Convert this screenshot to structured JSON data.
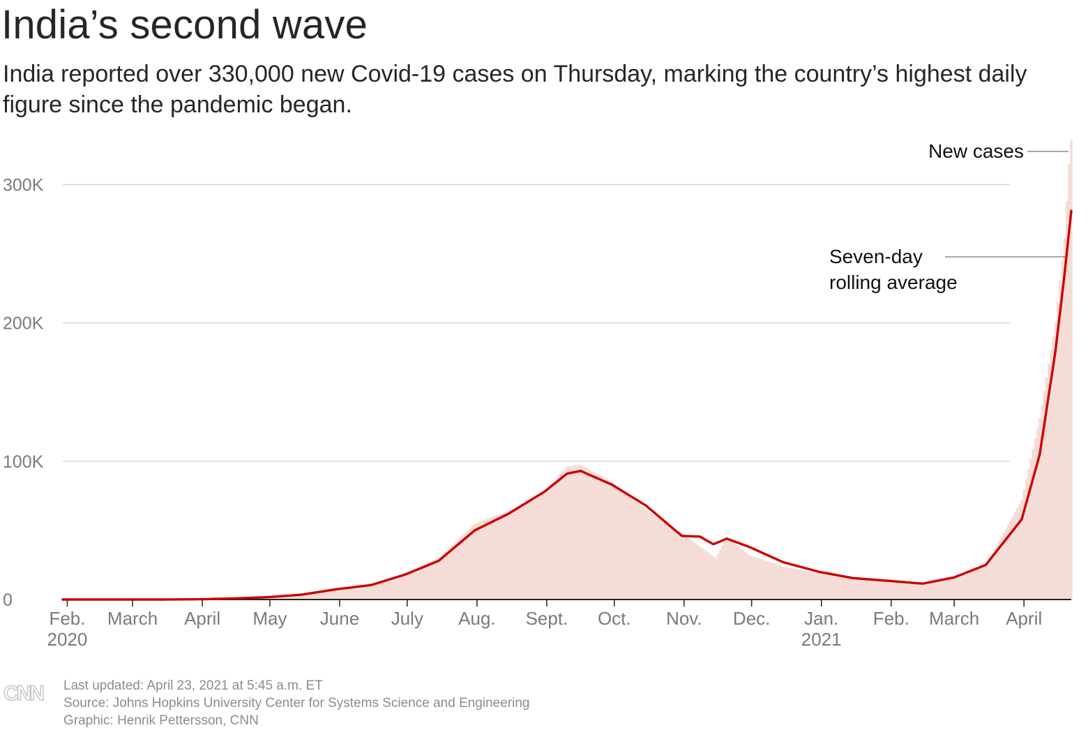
{
  "header": {
    "title": "India’s second wave",
    "subtitle": "India reported over 330,000 new Covid-19 cases on Thursday, marking the country’s highest daily figure since the pandemic began."
  },
  "footer": {
    "updated": "Last updated: April 23, 2021 at 5:45 a.m. ET",
    "source": "Source: Johns Hopkins University Center for Systems Science and Engineering",
    "credit": "Graphic: Henrik Pettersson, CNN",
    "logo_text": "CNN"
  },
  "colors": {
    "bars": "#f5dcd7",
    "line": "#cc0000",
    "grid": "#d9d9d9",
    "axis_text": "#7a7a7a",
    "annotation_text": "#111111"
  },
  "chart_data": {
    "type": "bar",
    "x_type": "date",
    "x_start": "2020-01-30",
    "x_end": "2021-04-22",
    "ylim": [
      0,
      330000
    ],
    "y_ticks": [
      {
        "value": 0,
        "label": "0"
      },
      {
        "value": 100000,
        "label": "100K"
      },
      {
        "value": 200000,
        "label": "200K"
      },
      {
        "value": 300000,
        "label": "300K"
      }
    ],
    "x_ticks": [
      {
        "date": "2020-02-01",
        "label": "Feb.",
        "sublabel": "2020"
      },
      {
        "date": "2020-03-01",
        "label": "March",
        "sublabel": ""
      },
      {
        "date": "2020-04-01",
        "label": "April",
        "sublabel": ""
      },
      {
        "date": "2020-05-01",
        "label": "May",
        "sublabel": ""
      },
      {
        "date": "2020-06-01",
        "label": "June",
        "sublabel": ""
      },
      {
        "date": "2020-07-01",
        "label": "July",
        "sublabel": ""
      },
      {
        "date": "2020-08-01",
        "label": "Aug.",
        "sublabel": ""
      },
      {
        "date": "2020-09-01",
        "label": "Sept.",
        "sublabel": ""
      },
      {
        "date": "2020-10-01",
        "label": "Oct.",
        "sublabel": ""
      },
      {
        "date": "2020-11-01",
        "label": "Nov.",
        "sublabel": ""
      },
      {
        "date": "2020-12-01",
        "label": "Dec.",
        "sublabel": ""
      },
      {
        "date": "2021-01-01",
        "label": "Jan.",
        "sublabel": "2021"
      },
      {
        "date": "2021-02-01",
        "label": "Feb.",
        "sublabel": ""
      },
      {
        "date": "2021-03-01",
        "label": "March",
        "sublabel": ""
      },
      {
        "date": "2021-04-01",
        "label": "April",
        "sublabel": ""
      }
    ],
    "grid": true,
    "series": [
      {
        "name": "New cases",
        "type": "bar",
        "points": [
          [
            "2020-01-30",
            0
          ],
          [
            "2020-03-15",
            20
          ],
          [
            "2020-03-31",
            300
          ],
          [
            "2020-04-15",
            900
          ],
          [
            "2020-04-30",
            1800
          ],
          [
            "2020-05-15",
            3800
          ],
          [
            "2020-05-31",
            8000
          ],
          [
            "2020-06-15",
            11000
          ],
          [
            "2020-06-30",
            18500
          ],
          [
            "2020-07-15",
            30000
          ],
          [
            "2020-07-31",
            55000
          ],
          [
            "2020-08-15",
            64000
          ],
          [
            "2020-08-31",
            78000
          ],
          [
            "2020-09-10",
            96000
          ],
          [
            "2020-09-16",
            97500
          ],
          [
            "2020-09-30",
            85000
          ],
          [
            "2020-10-15",
            65000
          ],
          [
            "2020-10-31",
            48000
          ],
          [
            "2020-11-15",
            30000
          ],
          [
            "2020-11-20",
            45500
          ],
          [
            "2020-11-30",
            32000
          ],
          [
            "2020-12-15",
            24000
          ],
          [
            "2020-12-31",
            19000
          ],
          [
            "2021-01-15",
            15000
          ],
          [
            "2021-01-31",
            13000
          ],
          [
            "2021-02-15",
            11500
          ],
          [
            "2021-03-01",
            15500
          ],
          [
            "2021-03-15",
            24500
          ],
          [
            "2021-03-31",
            72000
          ],
          [
            "2021-04-08",
            131000
          ],
          [
            "2021-04-15",
            200000
          ],
          [
            "2021-04-19",
            261000
          ],
          [
            "2021-04-21",
            315000
          ],
          [
            "2021-04-22",
            332000
          ]
        ]
      },
      {
        "name": "Seven-day rolling average",
        "label_lines": [
          "Seven-day",
          "rolling average"
        ],
        "type": "line",
        "points": [
          [
            "2020-01-30",
            0
          ],
          [
            "2020-03-15",
            20
          ],
          [
            "2020-03-31",
            200
          ],
          [
            "2020-04-15",
            800
          ],
          [
            "2020-04-30",
            1700
          ],
          [
            "2020-05-15",
            3500
          ],
          [
            "2020-05-31",
            7500
          ],
          [
            "2020-06-15",
            10500
          ],
          [
            "2020-06-30",
            18000
          ],
          [
            "2020-07-15",
            28000
          ],
          [
            "2020-07-31",
            50000
          ],
          [
            "2020-08-15",
            62000
          ],
          [
            "2020-08-31",
            78000
          ],
          [
            "2020-09-10",
            91000
          ],
          [
            "2020-09-16",
            93000
          ],
          [
            "2020-09-30",
            83000
          ],
          [
            "2020-10-15",
            68000
          ],
          [
            "2020-10-31",
            46000
          ],
          [
            "2020-11-08",
            45500
          ],
          [
            "2020-11-14",
            40000
          ],
          [
            "2020-11-20",
            44000
          ],
          [
            "2020-11-30",
            38000
          ],
          [
            "2020-12-15",
            27000
          ],
          [
            "2020-12-31",
            20000
          ],
          [
            "2021-01-15",
            15500
          ],
          [
            "2021-01-31",
            13500
          ],
          [
            "2021-02-15",
            11500
          ],
          [
            "2021-03-01",
            16000
          ],
          [
            "2021-03-15",
            25000
          ],
          [
            "2021-03-31",
            58000
          ],
          [
            "2021-04-08",
            105000
          ],
          [
            "2021-04-15",
            180000
          ],
          [
            "2021-04-19",
            235000
          ],
          [
            "2021-04-22",
            281000
          ]
        ]
      }
    ]
  }
}
